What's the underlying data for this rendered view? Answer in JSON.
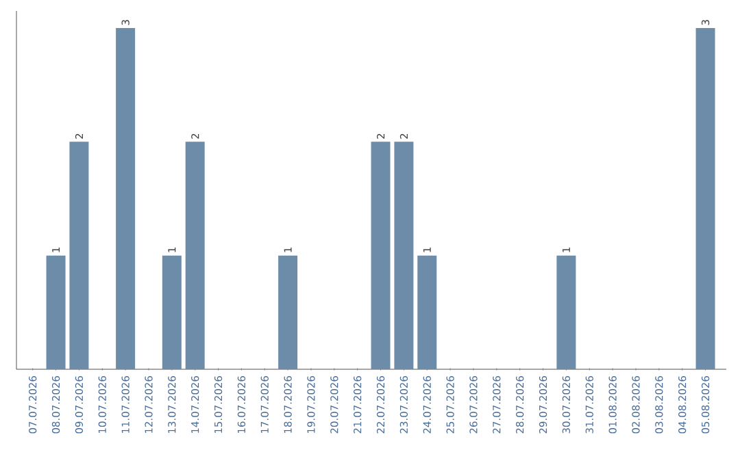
{
  "chart_data": {
    "type": "bar",
    "categories": [
      "07.07.2026",
      "08.07.2026",
      "09.07.2026",
      "10.07.2026",
      "11.07.2026",
      "12.07.2026",
      "13.07.2026",
      "14.07.2026",
      "15.07.2026",
      "16.07.2026",
      "17.07.2026",
      "18.07.2026",
      "19.07.2026",
      "20.07.2026",
      "21.07.2026",
      "22.07.2026",
      "23.07.2026",
      "24.07.2026",
      "25.07.2026",
      "26.07.2026",
      "27.07.2026",
      "28.07.2026",
      "29.07.2026",
      "30.07.2026",
      "31.07.2026",
      "01.08.2026",
      "02.08.2026",
      "03.08.2026",
      "04.08.2026",
      "05.08.2026"
    ],
    "values": [
      0,
      1,
      2,
      0,
      3,
      0,
      1,
      2,
      0,
      0,
      0,
      1,
      0,
      0,
      0,
      2,
      2,
      1,
      0,
      0,
      0,
      0,
      0,
      1,
      0,
      0,
      0,
      0,
      0,
      3
    ],
    "value_labels": [
      null,
      "1",
      "2",
      null,
      "3",
      null,
      "1",
      "2",
      null,
      null,
      null,
      "1",
      null,
      null,
      null,
      "2",
      "2",
      "1",
      null,
      null,
      null,
      null,
      null,
      "1",
      null,
      null,
      null,
      null,
      null,
      "3"
    ],
    "color": "#6d8caa",
    "tick_labels": "x"
  }
}
